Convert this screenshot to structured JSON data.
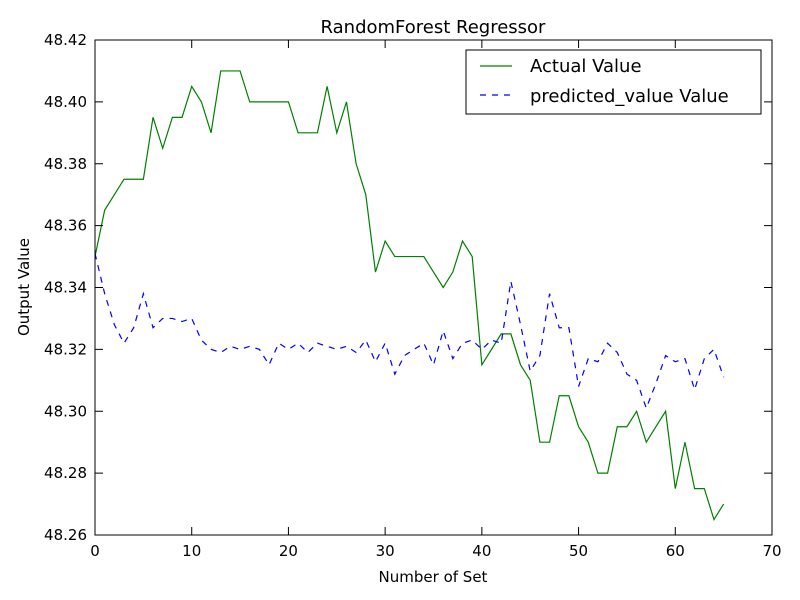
{
  "chart_data": {
    "type": "line",
    "title": "RandomForest Regressor",
    "xlabel": "Number of Set",
    "ylabel": "Output Value",
    "xlim": [
      0,
      70
    ],
    "ylim": [
      48.26,
      48.42
    ],
    "xticks": [
      0,
      10,
      20,
      30,
      40,
      50,
      60,
      70
    ],
    "yticks": [
      48.26,
      48.28,
      48.3,
      48.32,
      48.34,
      48.36,
      48.38,
      48.4,
      48.42
    ],
    "xtick_labels": [
      "0",
      "10",
      "20",
      "30",
      "40",
      "50",
      "60",
      "70"
    ],
    "ytick_labels": [
      "48.26",
      "48.28",
      "48.30",
      "48.32",
      "48.34",
      "48.36",
      "48.38",
      "48.40",
      "48.42"
    ],
    "grid": false,
    "legend_position": "top-right",
    "x": [
      0,
      1,
      2,
      3,
      4,
      5,
      6,
      7,
      8,
      9,
      10,
      11,
      12,
      13,
      14,
      15,
      16,
      17,
      18,
      19,
      20,
      21,
      22,
      23,
      24,
      25,
      26,
      27,
      28,
      29,
      30,
      31,
      32,
      33,
      34,
      35,
      36,
      37,
      38,
      39,
      40,
      41,
      42,
      43,
      44,
      45,
      46,
      47,
      48,
      49,
      50,
      51,
      52,
      53,
      54,
      55,
      56,
      57,
      58,
      59,
      60,
      61,
      62,
      63,
      64,
      65
    ],
    "series": [
      {
        "name": "Actual Value",
        "color": "#008000",
        "style": "solid",
        "values": [
          48.35,
          48.365,
          48.37,
          48.375,
          48.375,
          48.375,
          48.395,
          48.385,
          48.395,
          48.395,
          48.405,
          48.4,
          48.39,
          48.41,
          48.41,
          48.41,
          48.4,
          48.4,
          48.4,
          48.4,
          48.4,
          48.39,
          48.39,
          48.39,
          48.405,
          48.39,
          48.4,
          48.38,
          48.37,
          48.345,
          48.355,
          48.35,
          48.35,
          48.35,
          48.35,
          48.345,
          48.34,
          48.345,
          48.355,
          48.35,
          48.315,
          48.32,
          48.325,
          48.325,
          48.315,
          48.31,
          48.29,
          48.29,
          48.305,
          48.305,
          48.295,
          48.29,
          48.28,
          48.28,
          48.295,
          48.295,
          48.3,
          48.29,
          48.295,
          48.3,
          48.275,
          48.29,
          48.275,
          48.275,
          48.265,
          48.27
        ]
      },
      {
        "name": "predicted_value Value",
        "color": "#0000ff",
        "style": "dashed",
        "values": [
          48.351,
          48.338,
          48.328,
          48.322,
          48.327,
          48.338,
          48.327,
          48.33,
          48.33,
          48.329,
          48.33,
          48.323,
          48.32,
          48.319,
          48.321,
          48.32,
          48.321,
          48.32,
          48.315,
          48.322,
          48.32,
          48.322,
          48.319,
          48.322,
          48.321,
          48.32,
          48.321,
          48.319,
          48.323,
          48.316,
          48.322,
          48.312,
          48.318,
          48.32,
          48.322,
          48.315,
          48.326,
          48.317,
          48.322,
          48.323,
          48.32,
          48.323,
          48.322,
          48.342,
          48.328,
          48.313,
          48.318,
          48.338,
          48.327,
          48.327,
          48.308,
          48.317,
          48.316,
          48.322,
          48.319,
          48.312,
          48.31,
          48.301,
          48.309,
          48.318,
          48.316,
          48.317,
          48.307,
          48.317,
          48.32,
          48.311
        ]
      }
    ]
  }
}
